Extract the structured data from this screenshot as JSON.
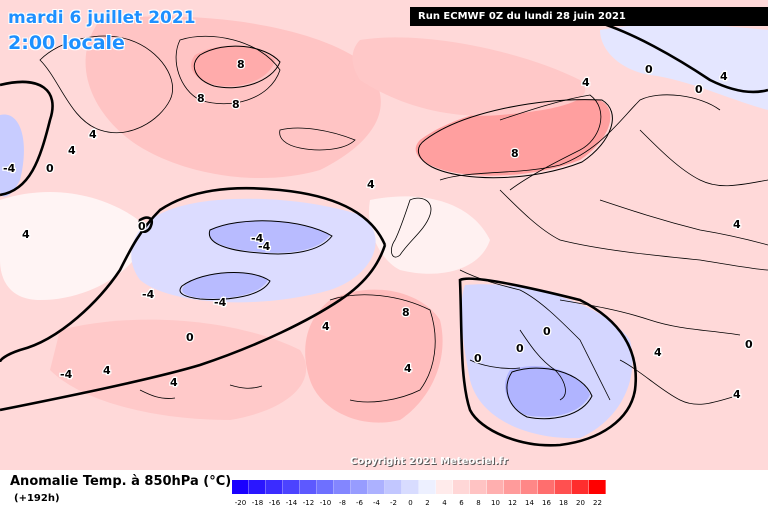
{
  "header": {
    "date": "mardi 6 juillet 2021",
    "time": "2:00 locale",
    "run": "Run ECMWF 0Z du lundi 28 juin 2021"
  },
  "footer": {
    "field": "Anomalie Temp. à 850hPa (°C)",
    "hour": "(+192h)",
    "copyright": "Copyright 2021 Meteociel.fr"
  },
  "legend": {
    "colors": [
      "#1a00ff",
      "#2a16ff",
      "#3b2cff",
      "#4c43ff",
      "#5d59ff",
      "#6e70ff",
      "#8386ff",
      "#979cff",
      "#acb1ff",
      "#c2c7ff",
      "#d8dcff",
      "#edf0ff",
      "#ffebeb",
      "#ffd7d7",
      "#ffc3c3",
      "#ffafaf",
      "#ff9b9b",
      "#ff8787",
      "#ff6e6e",
      "#ff5050",
      "#ff2d2d",
      "#ff0000"
    ],
    "ticks": [
      "-20",
      "-18",
      "-16",
      "-14",
      "-12",
      "-10",
      "-8",
      "-6",
      "-4",
      "-2",
      "0",
      "2",
      "4",
      "6",
      "8",
      "10",
      "12",
      "14",
      "16",
      "18",
      "20",
      "22"
    ]
  },
  "contour_labels": [
    "8",
    "8",
    "8",
    "4",
    "4",
    "0",
    "-4",
    "-4",
    "0",
    "4",
    "-4",
    "-4",
    "-4",
    "0",
    "8",
    "4",
    "4",
    "0",
    "4",
    "0",
    "-4",
    "0",
    "4",
    "4",
    "4",
    "4",
    "8",
    "4",
    "4",
    "4",
    "0",
    "0",
    "0"
  ]
}
